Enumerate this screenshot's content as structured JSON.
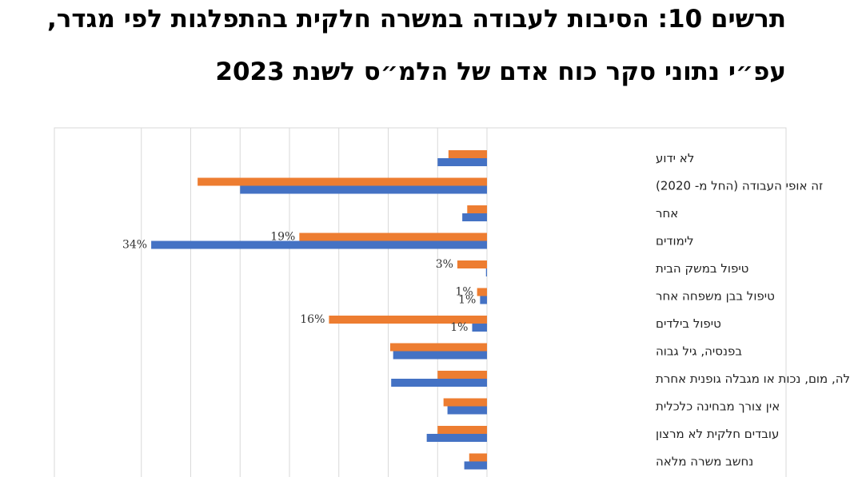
{
  "header": {
    "title_line1": "תרשים 10: הסיבות לעבודה במשרה חלקית בהתפלגות לפי מגדר,",
    "title_line2": "עפ״י נתוני סקר כוח אדם של הלמ״ס לשנת 2023"
  },
  "colors": {
    "orange": "#ED7D31",
    "blue": "#4472C4",
    "grid": "#D9D9D9",
    "frame": "#D9D9D9"
  },
  "chart_data": {
    "type": "bar",
    "orientation": "horizontal",
    "title": "",
    "xlabel": "",
    "ylabel": "",
    "xlim": [
      0,
      0.36
    ],
    "grid": true,
    "legend": "none",
    "value_format": "percent",
    "categories": [
      "לא ידוע",
      "זה אופי העבודה (החל מ- 2020)",
      "אחר",
      "לימודים",
      "טיפול במשק הבית",
      "טיפול בבן משפחה אחר",
      "טיפול בילדים",
      "בפנסיה, גיל גבוה",
      "בגלל מחלה, מום, נכות או מגבלה גופנית אחרת",
      "אין צורך מבחינה כלכלית",
      "עובדים חלקית לא מרצון",
      "נחשב משרה מלאה"
    ],
    "series": [
      {
        "color": "#ED7D31",
        "values": [
          0.039,
          0.293,
          0.02,
          0.19,
          0.03,
          0.01,
          0.16,
          0.098,
          0.05,
          0.044,
          0.05,
          0.018
        ],
        "data_labels": [
          null,
          null,
          null,
          "19%",
          "3%",
          "1%",
          "16%",
          null,
          null,
          null,
          null,
          null
        ]
      },
      {
        "color": "#4472C4",
        "values": [
          0.05,
          0.25,
          0.025,
          0.34,
          0.001,
          0.007,
          0.015,
          0.095,
          0.097,
          0.04,
          0.061,
          0.023
        ],
        "data_labels": [
          null,
          null,
          null,
          "34%",
          null,
          "1%",
          "1%",
          null,
          null,
          null,
          null,
          null
        ]
      }
    ]
  }
}
